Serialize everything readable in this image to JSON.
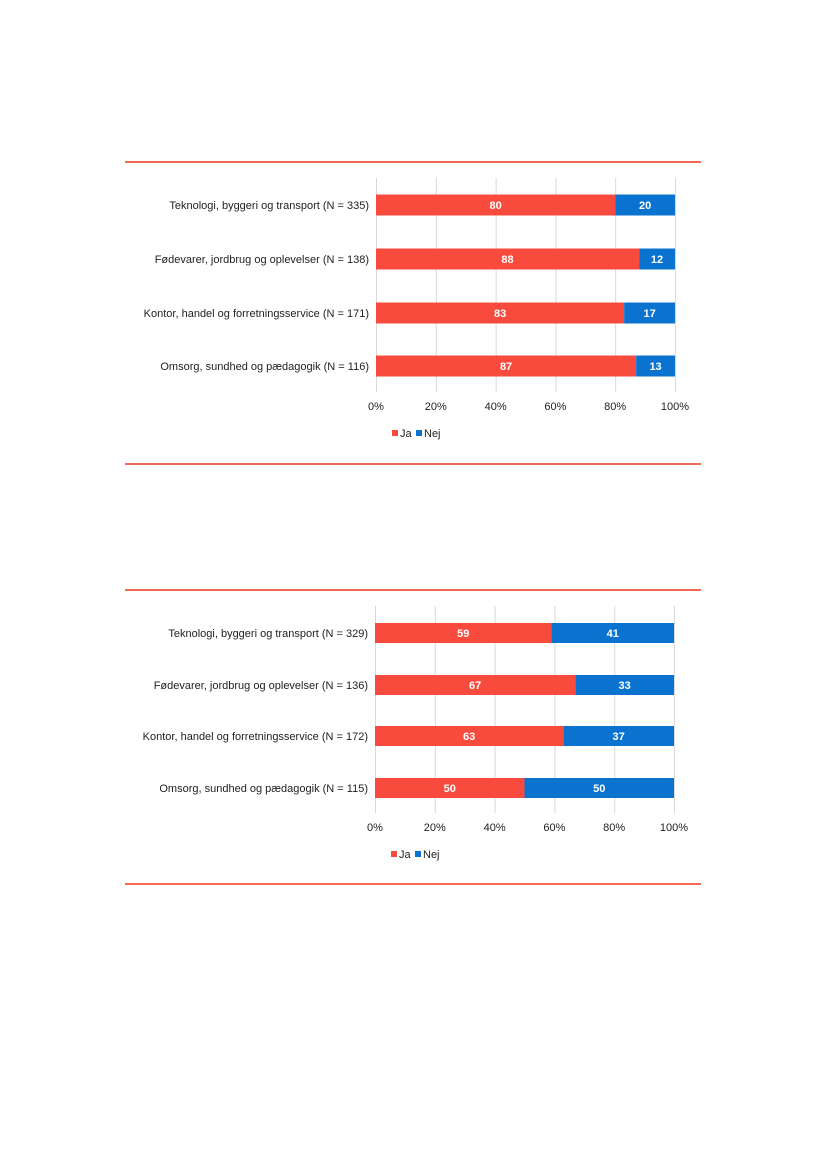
{
  "colors": {
    "ja": "#f84b3e",
    "nej": "#0a73d0",
    "rule": "#f26a55"
  },
  "chart_data": [
    {
      "type": "bar",
      "orientation": "horizontal",
      "stacked": true,
      "categories": [
        "Teknologi, byggeri og transport (N = 335)",
        "Fødevarer, jordbrug og oplevelser (N = 138)",
        "Kontor, handel og forretningsservice (N = 171)",
        "Omsorg, sundhed og pædagogik (N = 116)"
      ],
      "series": [
        {
          "name": "Ja",
          "values": [
            80,
            88,
            83,
            87
          ]
        },
        {
          "name": "Nej",
          "values": [
            20,
            12,
            17,
            13
          ]
        }
      ],
      "xlim": [
        0,
        100
      ],
      "xticks": [
        "0%",
        "20%",
        "40%",
        "60%",
        "80%",
        "100%"
      ],
      "grid": true,
      "legend": "bottom-center"
    },
    {
      "type": "bar",
      "orientation": "horizontal",
      "stacked": true,
      "categories": [
        "Teknologi, byggeri og transport (N = 329)",
        "Fødevarer, jordbrug og oplevelser (N = 136)",
        "Kontor, handel og forretningsservice (N = 172)",
        "Omsorg, sundhed og pædagogik (N = 115)"
      ],
      "series": [
        {
          "name": "Ja",
          "values": [
            59,
            67,
            63,
            50
          ]
        },
        {
          "name": "Nej",
          "values": [
            41,
            33,
            37,
            50
          ]
        }
      ],
      "xlim": [
        0,
        100
      ],
      "xticks": [
        "0%",
        "20%",
        "40%",
        "60%",
        "80%",
        "100%"
      ],
      "grid": true,
      "legend": "bottom-center"
    }
  ]
}
